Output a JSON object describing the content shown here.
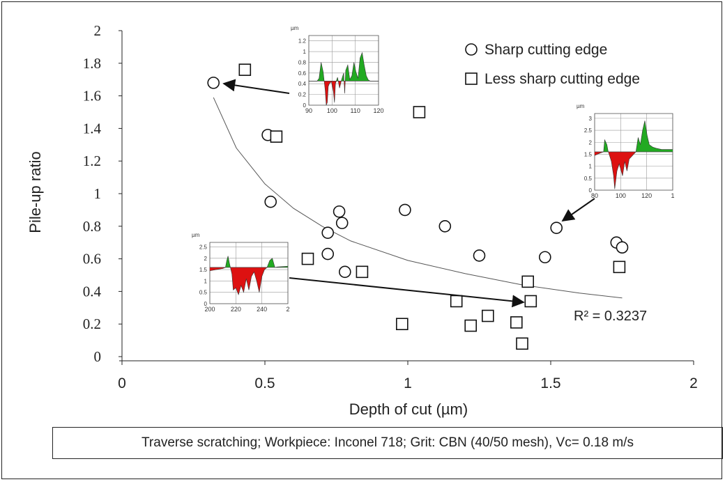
{
  "chart_data": {
    "type": "scatter",
    "xlabel": "Depth of cut (µm)",
    "ylabel": "Pile-up ratio",
    "xlim": [
      0,
      2
    ],
    "ylim": [
      0,
      2
    ],
    "x_ticks": [
      "0",
      "0.5",
      "1",
      "1.5",
      "2"
    ],
    "y_ticks": [
      "0",
      "0.2",
      "0.4",
      "0.6",
      "0.8",
      "1",
      "1.2",
      "1.4",
      "1.6",
      "1.8",
      "2"
    ],
    "legend_position": "top-right",
    "series": [
      {
        "name": "Sharp cutting edge",
        "marker": "circle",
        "points": [
          [
            0.32,
            1.68
          ],
          [
            0.51,
            1.36
          ],
          [
            0.52,
            0.95
          ],
          [
            0.72,
            0.76
          ],
          [
            0.72,
            0.63
          ],
          [
            0.76,
            0.89
          ],
          [
            0.77,
            0.82
          ],
          [
            0.78,
            0.52
          ],
          [
            0.99,
            0.9
          ],
          [
            1.13,
            0.8
          ],
          [
            1.25,
            0.62
          ],
          [
            1.48,
            0.61
          ],
          [
            1.52,
            0.79
          ],
          [
            1.73,
            0.7
          ],
          [
            1.75,
            0.67
          ]
        ]
      },
      {
        "name": "Less sharp cutting edge",
        "marker": "square",
        "points": [
          [
            0.43,
            1.76
          ],
          [
            0.54,
            1.35
          ],
          [
            0.65,
            0.6
          ],
          [
            0.84,
            0.52
          ],
          [
            0.98,
            0.2
          ],
          [
            1.04,
            1.5
          ],
          [
            1.17,
            0.34
          ],
          [
            1.22,
            0.19
          ],
          [
            1.28,
            0.25
          ],
          [
            1.38,
            0.21
          ],
          [
            1.4,
            0.08
          ],
          [
            1.42,
            0.46
          ],
          [
            1.43,
            0.34
          ],
          [
            1.74,
            0.55
          ]
        ]
      }
    ],
    "trendline": {
      "type": "power",
      "curve": [
        [
          0.32,
          1.59
        ],
        [
          0.4,
          1.28
        ],
        [
          0.5,
          1.06
        ],
        [
          0.6,
          0.91
        ],
        [
          0.7,
          0.8
        ],
        [
          0.8,
          0.71
        ],
        [
          1.0,
          0.59
        ],
        [
          1.2,
          0.51
        ],
        [
          1.4,
          0.44
        ],
        [
          1.6,
          0.39
        ],
        [
          1.75,
          0.36
        ]
      ],
      "label": "R² = 0.3237"
    },
    "insets": [
      {
        "unit": "µm",
        "y_ticks": [
          "0",
          "0.2",
          "0.4",
          "0.6",
          "0.8",
          "1",
          "1.2"
        ],
        "x_ticks": [
          "90",
          "100",
          "110",
          "120"
        ],
        "xlim": [
          88,
          122
        ],
        "ylim": [
          0,
          1.3
        ],
        "baseline": 0.45,
        "profile": [
          [
            88,
            0.45
          ],
          [
            92,
            0.45
          ],
          [
            93,
            0.5
          ],
          [
            94,
            0.8
          ],
          [
            95,
            0.62
          ],
          [
            96,
            0.28
          ],
          [
            96.5,
            0.0
          ],
          [
            97,
            0.05
          ],
          [
            97.5,
            0.35
          ],
          [
            98,
            0.4
          ],
          [
            99,
            0.44
          ],
          [
            100,
            0.25
          ],
          [
            100.5,
            0.05
          ],
          [
            101,
            0.4
          ],
          [
            102,
            0.52
          ],
          [
            103,
            0.32
          ],
          [
            104,
            0.48
          ],
          [
            105,
            0.6
          ],
          [
            105.5,
            0.22
          ],
          [
            106,
            0.65
          ],
          [
            107,
            0.75
          ],
          [
            108,
            0.48
          ],
          [
            109,
            0.55
          ],
          [
            110,
            0.8
          ],
          [
            111,
            0.62
          ],
          [
            112,
            0.5
          ],
          [
            113,
            0.88
          ],
          [
            114,
            0.98
          ],
          [
            115,
            0.75
          ],
          [
            116,
            0.55
          ],
          [
            117,
            0.47
          ],
          [
            118,
            0.45
          ],
          [
            122,
            0.45
          ]
        ]
      },
      {
        "unit": "µm",
        "y_ticks": [
          "0",
          "0.5",
          "1",
          "1.5",
          "2",
          "2.5",
          "3"
        ],
        "x_ticks": [
          "80",
          "100",
          "120",
          "1"
        ],
        "xlim": [
          75,
          145
        ],
        "ylim": [
          0,
          3.2
        ],
        "baseline": 1.6,
        "profile": [
          [
            75,
            1.45
          ],
          [
            80,
            1.55
          ],
          [
            83,
            1.6
          ],
          [
            84,
            2.1
          ],
          [
            86,
            1.9
          ],
          [
            87,
            1.65
          ],
          [
            90,
            1.2
          ],
          [
            92,
            0.6
          ],
          [
            93,
            0.05
          ],
          [
            95,
            0.8
          ],
          [
            97,
            1.1
          ],
          [
            100,
            0.6
          ],
          [
            102,
            1.2
          ],
          [
            104,
            0.8
          ],
          [
            106,
            1.3
          ],
          [
            108,
            1.4
          ],
          [
            110,
            1.5
          ],
          [
            112,
            1.6
          ],
          [
            114,
            2.2
          ],
          [
            116,
            1.9
          ],
          [
            118,
            2.5
          ],
          [
            120,
            2.9
          ],
          [
            122,
            2.3
          ],
          [
            124,
            1.9
          ],
          [
            127,
            1.8
          ],
          [
            130,
            1.75
          ],
          [
            135,
            1.7
          ],
          [
            145,
            1.7
          ]
        ]
      },
      {
        "unit": "µm",
        "y_ticks": [
          "0",
          "0.5",
          "1",
          "1.5",
          "2",
          "2.5"
        ],
        "x_ticks": [
          "200",
          "220",
          "240",
          "2"
        ],
        "xlim": [
          195,
          255
        ],
        "ylim": [
          0,
          2.7
        ],
        "baseline": 1.6,
        "profile": [
          [
            195,
            1.45
          ],
          [
            205,
            1.55
          ],
          [
            207,
            1.6
          ],
          [
            208,
            1.9
          ],
          [
            209,
            2.1
          ],
          [
            210,
            1.8
          ],
          [
            212,
            1.3
          ],
          [
            213,
            0.6
          ],
          [
            215,
            0.7
          ],
          [
            217,
            0.4
          ],
          [
            219,
            0.8
          ],
          [
            221,
            0.5
          ],
          [
            223,
            1.1
          ],
          [
            225,
            0.6
          ],
          [
            227,
            1.2
          ],
          [
            229,
            1.4
          ],
          [
            231,
            1.0
          ],
          [
            233,
            0.5
          ],
          [
            235,
            1.2
          ],
          [
            237,
            1.5
          ],
          [
            239,
            1.6
          ],
          [
            241,
            1.9
          ],
          [
            243,
            2.0
          ],
          [
            245,
            1.6
          ],
          [
            247,
            1.62
          ],
          [
            255,
            1.65
          ]
        ]
      }
    ],
    "colors": {
      "axis": "#222222",
      "marker": "#111111",
      "above": "#22aa22",
      "below": "#dd1111",
      "inset_grid": "#999999"
    }
  },
  "caption": "Traverse scratching; Workpiece: Inconel 718; Grit: CBN (40/50 mesh), Vc= 0.18 m/s"
}
